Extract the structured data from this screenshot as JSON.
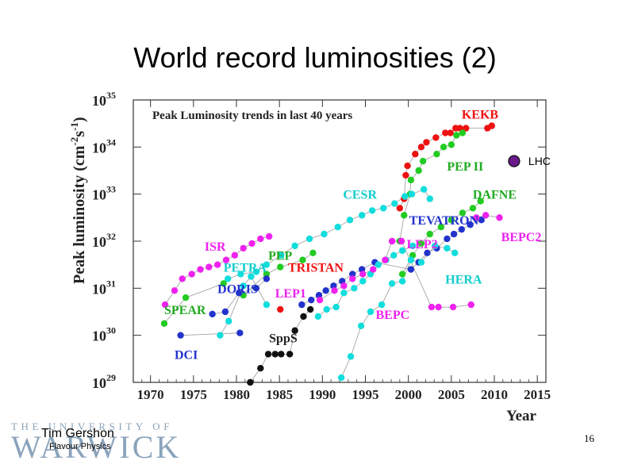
{
  "slide": {
    "title": "World record luminosities (2)",
    "author": "Tim Gershon",
    "subtitle": "Flavour Physics",
    "page_number": "16",
    "logo_top": "THE UNIVERSITY OF",
    "logo_name": "WARWICK"
  },
  "chart_data": {
    "type": "scatter",
    "title": "Peak Luminosity trends in last 40 years",
    "xlabel": "Year",
    "ylabel": "Peak luminosity (cm",
    "ylabel_exp1": "-2",
    "ylabel_s": "s",
    "ylabel_exp2": "-1",
    "ylabel_close": ")",
    "xlim": [
      1968,
      2016
    ],
    "ylim_log10": [
      29,
      35
    ],
    "x_ticks": [
      "1970",
      "1975",
      "1980",
      "1985",
      "1990",
      "1995",
      "2000",
      "2005",
      "2010",
      "2015"
    ],
    "y_ticks": [
      {
        "base": "10",
        "exp": "35"
      },
      {
        "base": "10",
        "exp": "34"
      },
      {
        "base": "10",
        "exp": "33"
      },
      {
        "base": "10",
        "exp": "32"
      },
      {
        "base": "10",
        "exp": "31"
      },
      {
        "base": "10",
        "exp": "30"
      },
      {
        "base": "10",
        "exp": "29"
      }
    ],
    "series": [
      {
        "name": "KEKB",
        "color": "#ee1111",
        "points": [
          [
            1999,
            32.7
          ],
          [
            1999.5,
            32.9
          ],
          [
            1999.7,
            33.4
          ],
          [
            1999.9,
            33.6
          ],
          [
            2000.8,
            33.85
          ],
          [
            2001.5,
            34.0
          ],
          [
            2002.1,
            34.1
          ],
          [
            2003.2,
            34.2
          ],
          [
            2004.3,
            34.3
          ],
          [
            2004.9,
            34.3
          ],
          [
            2005.5,
            34.4
          ],
          [
            2006.0,
            34.4
          ],
          [
            2006.7,
            34.4
          ],
          [
            2009.2,
            34.4
          ],
          [
            2009.7,
            34.45
          ]
        ]
      },
      {
        "name": "PEP II",
        "color": "#22cc22",
        "points": [
          [
            1999,
            32.0
          ],
          [
            1999.5,
            32.55
          ],
          [
            2000.2,
            33.0
          ],
          [
            2000.3,
            33.3
          ],
          [
            2001.2,
            33.5
          ],
          [
            2001.7,
            33.7
          ],
          [
            2003.3,
            33.85
          ],
          [
            2004.1,
            34.0
          ],
          [
            2005.0,
            34.05
          ],
          [
            2005.6,
            34.25
          ],
          [
            2006.3,
            34.3
          ]
        ]
      },
      {
        "name": "CESR",
        "color": "#11dddd",
        "points": [
          [
            1979,
            31.2
          ],
          [
            1980.5,
            31.3
          ],
          [
            1982.3,
            31.35
          ],
          [
            1983.5,
            31.5
          ],
          [
            1985.2,
            31.7
          ],
          [
            1986.8,
            31.9
          ],
          [
            1988.5,
            32.05
          ],
          [
            1990.2,
            32.15
          ],
          [
            1991.8,
            32.3
          ],
          [
            1993.2,
            32.45
          ],
          [
            1994.6,
            32.55
          ],
          [
            1995.8,
            32.65
          ],
          [
            1997.1,
            32.7
          ],
          [
            1998.4,
            32.8
          ],
          [
            1999.6,
            32.95
          ],
          [
            2000.4,
            33.0
          ],
          [
            2001.8,
            33.1
          ],
          [
            2002.5,
            32.9
          ]
        ]
      },
      {
        "name": "DAFNE",
        "color": "#22cc22",
        "points": [
          [
            1999.3,
            31.3
          ],
          [
            2000.5,
            31.7
          ],
          [
            2001.5,
            31.95
          ],
          [
            2002.5,
            32.15
          ],
          [
            2003.8,
            32.3
          ],
          [
            2005.0,
            32.45
          ],
          [
            2006.3,
            32.6
          ],
          [
            2007.5,
            32.7
          ],
          [
            2008.4,
            32.85
          ]
        ]
      },
      {
        "name": "TEVATRON",
        "color": "#2233cc",
        "points": [
          [
            1987.6,
            30.65
          ],
          [
            1988.7,
            30.75
          ],
          [
            1989.6,
            30.85
          ],
          [
            1990.4,
            30.95
          ],
          [
            1991.3,
            31.05
          ],
          [
            1992.3,
            31.15
          ],
          [
            1993.5,
            31.3
          ],
          [
            1994.6,
            31.4
          ],
          [
            1996.1,
            31.55
          ],
          [
            2000.3,
            31.4
          ],
          [
            2001.2,
            31.55
          ],
          [
            2002.2,
            31.75
          ],
          [
            2003.3,
            31.85
          ],
          [
            2004.5,
            32.05
          ],
          [
            2005.3,
            32.15
          ],
          [
            2006.2,
            32.25
          ],
          [
            2007.2,
            32.35
          ],
          [
            2008.5,
            32.45
          ]
        ]
      },
      {
        "name": "LEP",
        "color": "#11dddd",
        "points": [
          [
            1989.5,
            30.4
          ],
          [
            1990.5,
            30.55
          ],
          [
            1991.6,
            30.6
          ],
          [
            1992.5,
            30.9
          ],
          [
            1993.7,
            31.0
          ],
          [
            1994.7,
            31.15
          ],
          [
            1995.6,
            31.3
          ],
          [
            1996.5,
            31.5
          ],
          [
            1997.4,
            31.6
          ],
          [
            1998.3,
            31.7
          ],
          [
            1999.3,
            31.8
          ],
          [
            2000.5,
            31.9
          ]
        ]
      },
      {
        "name": "HERA",
        "color": "#11dddd",
        "points": [
          [
            1992.2,
            29.1
          ],
          [
            1993.3,
            29.55
          ],
          [
            1994.5,
            30.2
          ],
          [
            1995.6,
            30.5
          ],
          [
            1996.9,
            30.65
          ],
          [
            1998.1,
            31.1
          ],
          [
            1999.3,
            31.15
          ],
          [
            2000.3,
            31.6
          ],
          [
            2001.5,
            31.55
          ],
          [
            2003.1,
            31.9
          ],
          [
            2004.5,
            31.85
          ],
          [
            2005.4,
            31.75
          ]
        ]
      },
      {
        "name": "BEPC",
        "color": "#ee22ee",
        "points": [
          [
            1989.7,
            30.75
          ],
          [
            1991.4,
            30.95
          ],
          [
            1992.5,
            31.05
          ],
          [
            1993.5,
            31.2
          ],
          [
            1994.7,
            31.3
          ],
          [
            1995.9,
            31.4
          ],
          [
            1997.3,
            31.6
          ],
          [
            1998.1,
            32.0
          ],
          [
            1999.2,
            32.0
          ],
          [
            2002.7,
            30.6
          ],
          [
            2003.5,
            30.6
          ],
          [
            2005.2,
            30.6
          ],
          [
            2007.3,
            30.65
          ]
        ]
      },
      {
        "name": "BEPC2",
        "color": "#ee22ee",
        "points": [
          [
            2007.9,
            32.5
          ],
          [
            2009.0,
            32.55
          ],
          [
            2010.6,
            32.5
          ]
        ]
      },
      {
        "name": "ISR",
        "color": "#ee22ee",
        "points": [
          [
            1971.7,
            30.65
          ],
          [
            1972.8,
            30.95
          ],
          [
            1973.7,
            31.2
          ],
          [
            1974.8,
            31.3
          ],
          [
            1975.8,
            31.4
          ],
          [
            1976.8,
            31.45
          ],
          [
            1977.8,
            31.5
          ],
          [
            1978.8,
            31.6
          ],
          [
            1979.8,
            31.7
          ],
          [
            1980.8,
            31.85
          ],
          [
            1981.8,
            31.95
          ],
          [
            1982.8,
            32.05
          ],
          [
            1983.8,
            32.1
          ]
        ]
      },
      {
        "name": "PETRA",
        "color": "#11dddd",
        "points": [
          [
            1978.1,
            30.0
          ],
          [
            1979.1,
            30.3
          ],
          [
            1980.8,
            31.05
          ],
          [
            1981.7,
            31.25
          ],
          [
            1983.5,
            30.65
          ]
        ]
      },
      {
        "name": "PEP",
        "color": "#22cc22",
        "points": [
          [
            1980.8,
            30.85
          ],
          [
            1983.5,
            31.3
          ],
          [
            1985.1,
            31.45
          ],
          [
            1987.7,
            31.6
          ],
          [
            1988.9,
            31.75
          ]
        ]
      },
      {
        "name": "TRISTAN",
        "color": "#ee1111",
        "points": [
          [
            1985.1,
            30.55
          ]
        ]
      },
      {
        "name": "DORIS",
        "color": "#2233cc",
        "points": [
          [
            1977.2,
            30.45
          ],
          [
            1978.7,
            30.5
          ],
          [
            1980.3,
            30.9
          ],
          [
            1982.3,
            31.0
          ],
          [
            1983.5,
            31.2
          ]
        ]
      },
      {
        "name": "SPEAR",
        "color": "#22cc22",
        "points": [
          [
            1971.6,
            30.25
          ],
          [
            1974.1,
            30.8
          ],
          [
            1978.5,
            31.1
          ]
        ]
      },
      {
        "name": "DCI",
        "color": "#2233cc",
        "points": [
          [
            1973.5,
            30.0
          ],
          [
            1980.4,
            30.05
          ]
        ]
      },
      {
        "name": "SppS",
        "color": "#111111",
        "points": [
          [
            1981.6,
            29.0
          ],
          [
            1982.8,
            29.3
          ],
          [
            1983.7,
            29.6
          ],
          [
            1984.5,
            29.6
          ],
          [
            1985.2,
            29.6
          ],
          [
            1986.2,
            29.6
          ],
          [
            1986.8,
            30.1
          ],
          [
            1987.8,
            30.4
          ],
          [
            1988.6,
            30.55
          ]
        ]
      }
    ],
    "labels": [
      {
        "text": "KEKB",
        "x": 2006.2,
        "y": 34.6,
        "color": "#ee1111"
      },
      {
        "text": "PEP II",
        "x": 2004.5,
        "y": 33.5,
        "color": "#22aa22"
      },
      {
        "text": "CESR",
        "x": 1992.4,
        "y": 32.9,
        "color": "#11cccc"
      },
      {
        "text": "DAFNE",
        "x": 2007.5,
        "y": 32.9,
        "color": "#22aa22"
      },
      {
        "text": "TEVATRON",
        "x": 2000.1,
        "y": 32.35,
        "color": "#2233cc"
      },
      {
        "text": "BEPC2",
        "x": 2010.8,
        "y": 32.0,
        "color": "#ee22ee"
      },
      {
        "text": "LEP2",
        "x": 1999.8,
        "y": 31.85,
        "color": "#ee22ee"
      },
      {
        "text": "ISR",
        "x": 1976.3,
        "y": 31.8,
        "color": "#ee22ee"
      },
      {
        "text": "PEP",
        "x": 1983.7,
        "y": 31.6,
        "color": "#22aa22"
      },
      {
        "text": "PETRA",
        "x": 1978.5,
        "y": 31.35,
        "color": "#11cccc"
      },
      {
        "text": "TRISTAN",
        "x": 1986.0,
        "y": 31.35,
        "color": "#ee1111"
      },
      {
        "text": "HERA",
        "x": 2004.3,
        "y": 31.1,
        "color": "#11cccc"
      },
      {
        "text": "DORIS",
        "x": 1977.8,
        "y": 30.9,
        "color": "#2233cc"
      },
      {
        "text": "LEP1",
        "x": 1984.5,
        "y": 30.8,
        "color": "#ee22ee"
      },
      {
        "text": "SPEAR",
        "x": 1971.6,
        "y": 30.45,
        "color": "#22aa22"
      },
      {
        "text": "BEPC",
        "x": 1996.2,
        "y": 30.35,
        "color": "#ee22ee"
      },
      {
        "text": "SppS",
        "x": 1983.8,
        "y": 29.85,
        "color": "#222222"
      },
      {
        "text": "DCI",
        "x": 1972.8,
        "y": 29.5,
        "color": "#2233cc"
      }
    ],
    "lhc_marker": {
      "text": "LHC",
      "x": 2012.3,
      "y": 33.7,
      "color": "#6a1a8a"
    }
  }
}
